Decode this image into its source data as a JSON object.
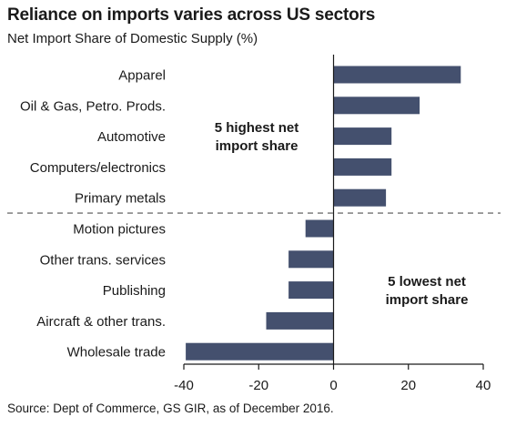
{
  "chart_data": {
    "type": "bar",
    "orientation": "horizontal",
    "title": "Reliance on imports varies across US sectors",
    "subtitle": "Net Import Share of Domestic Supply (%)",
    "categories": [
      "Apparel",
      "Oil & Gas, Petro. Prods.",
      "Automotive",
      "Computers/electronics",
      "Primary metals",
      "Motion pictures",
      "Other trans. services",
      "Publishing",
      "Aircraft & other trans.",
      "Wholesale trade"
    ],
    "values": [
      34,
      23,
      15.5,
      15.5,
      14,
      -7.5,
      -12,
      -12,
      -18,
      -39.5
    ],
    "xlim": [
      -40,
      40
    ],
    "xticks": [
      -40,
      -20,
      0,
      20,
      40
    ],
    "bar_color": "#44506e",
    "divider_after_index": 4,
    "annotations": [
      {
        "lines": [
          "5 highest net",
          "import share"
        ]
      },
      {
        "lines": [
          "5 lowest net",
          "import share"
        ]
      }
    ],
    "source": "Source: Dept of Commerce, GS GIR, as of December 2016.",
    "grid": false
  }
}
